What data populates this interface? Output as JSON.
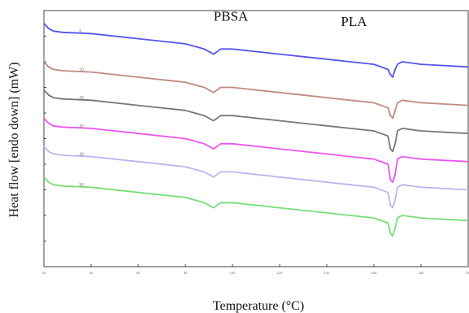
{
  "chart_data": {
    "type": "line",
    "title": "",
    "xlabel": "Temperature (°C)",
    "ylabel": "Heat flow [endo down] (mW)",
    "xlim": [
      20,
      200
    ],
    "ylim": [
      0,
      100
    ],
    "grid": false,
    "legend": "none",
    "x_tick_labels": [
      "20",
      "40",
      "60",
      "80",
      "100",
      "120",
      "140",
      "160",
      "180",
      "200"
    ],
    "y_tick_labels": [
      "",
      "",
      "",
      "",
      "",
      "",
      "",
      "",
      "",
      "",
      ""
    ],
    "annotations": [
      {
        "text": "PBSA",
        "x": 92,
        "y": 96
      },
      {
        "text": "PLA",
        "x": 146,
        "y": 94
      }
    ],
    "series": [
      {
        "name": "0",
        "color": "#5555ee",
        "label_x": 35,
        "offset": 91
      },
      {
        "name": "10",
        "color": "#c08a80",
        "label_x": 35,
        "offset": 76
      },
      {
        "name": "20",
        "color": "#777777",
        "label_x": 35,
        "offset": 65
      },
      {
        "name": "30",
        "color": "#ee55ee",
        "label_x": 35,
        "offset": 54
      },
      {
        "name": "40",
        "color": "#b8b8ee",
        "label_x": 35,
        "offset": 43
      },
      {
        "name": "50",
        "color": "#77dd77",
        "label_x": 35,
        "offset": 31
      }
    ],
    "curve_shape": {
      "x": [
        20,
        21,
        22,
        24,
        28,
        40,
        60,
        80,
        88,
        92,
        95,
        100,
        120,
        140,
        150,
        160,
        166,
        167,
        168,
        169,
        170,
        172,
        180,
        200
      ],
      "delta": [
        4,
        3,
        2,
        1,
        0.5,
        0,
        -2,
        -4,
        -6,
        -8,
        -6,
        -6,
        -8,
        -10,
        -11,
        -12,
        -14,
        -16,
        -17,
        -14,
        -12,
        -11,
        -12,
        -13
      ]
    },
    "pla_dip_depth": [
      0,
      1,
      3,
      4,
      3,
      2
    ]
  }
}
